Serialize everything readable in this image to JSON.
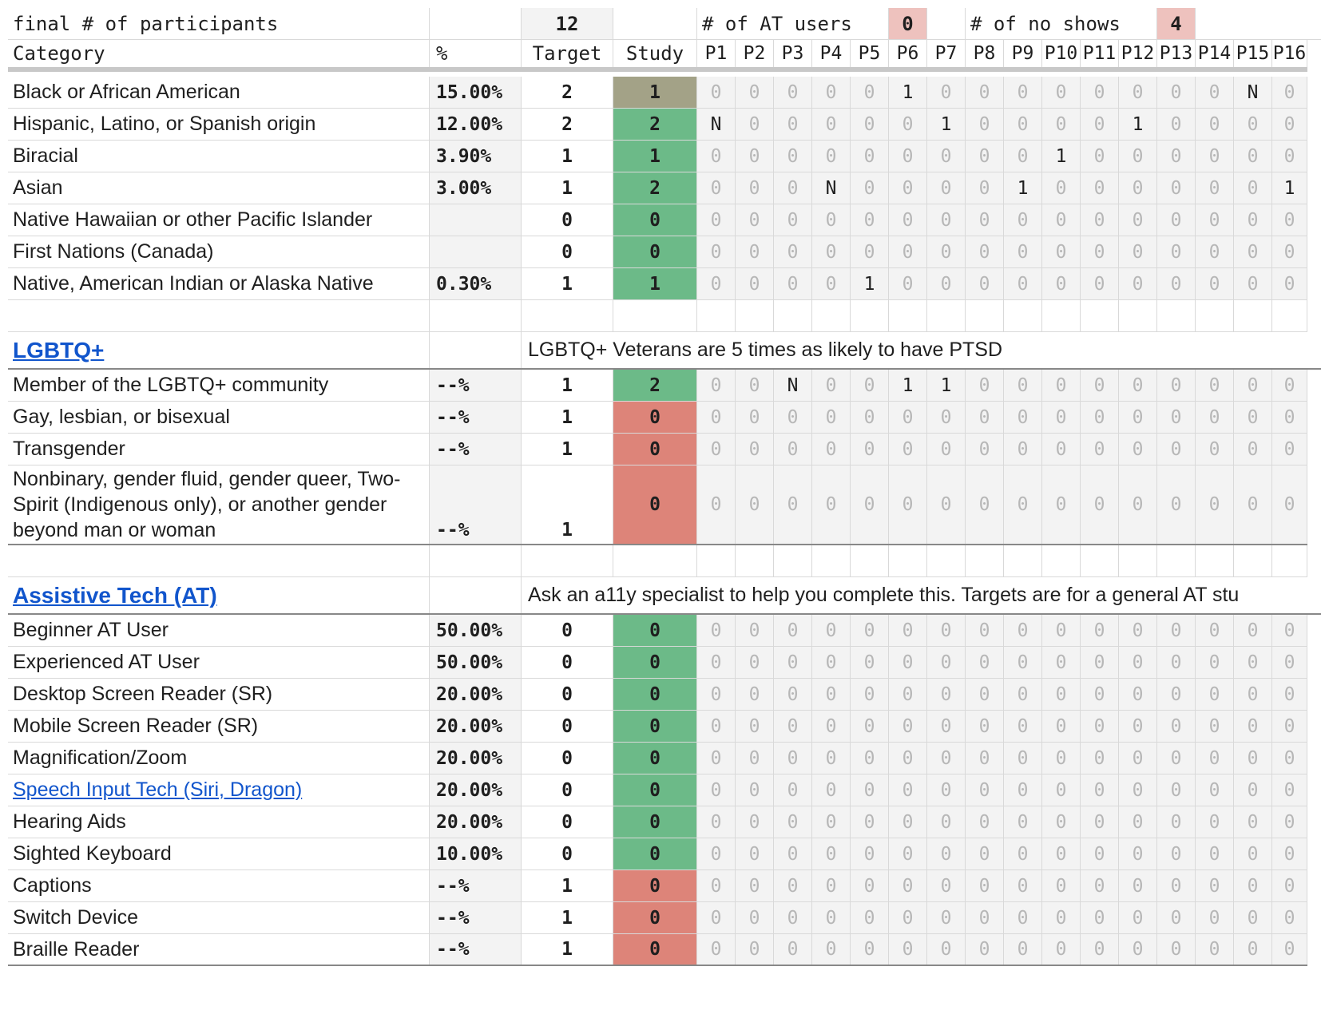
{
  "summary": {
    "final_label": "final # of participants",
    "final_value": "12",
    "at_users_label": "# of AT users",
    "at_users_value": "0",
    "no_shows_label": "# of no shows",
    "no_shows_value": "4"
  },
  "columns": {
    "category": "Category",
    "pct": "%",
    "target": "Target",
    "study": "Study",
    "participants": [
      "P1",
      "P2",
      "P3",
      "P4",
      "P5",
      "P6",
      "P7",
      "P8",
      "P9",
      "P10",
      "P11",
      "P12",
      "P13",
      "P14",
      "P15",
      "P16"
    ]
  },
  "colors": {
    "green": "#6cba88",
    "red": "#dd8479",
    "olive": "#a3a287",
    "pink": "#eec2be",
    "link": "#1155cc"
  },
  "race_rows": [
    {
      "category": "Black or African American",
      "pct": "15.00%",
      "target": "2",
      "study": "1",
      "study_color": "olive",
      "p": [
        "0",
        "0",
        "0",
        "0",
        "0",
        "1",
        "0",
        "0",
        "0",
        "0",
        "0",
        "0",
        "0",
        "0",
        "N",
        "0"
      ]
    },
    {
      "category": "Hispanic, Latino, or Spanish origin",
      "pct": "12.00%",
      "target": "2",
      "study": "2",
      "study_color": "green",
      "p": [
        "N",
        "0",
        "0",
        "0",
        "0",
        "0",
        "1",
        "0",
        "0",
        "0",
        "0",
        "1",
        "0",
        "0",
        "0",
        "0"
      ]
    },
    {
      "category": "Biracial",
      "pct": "3.90%",
      "target": "1",
      "study": "1",
      "study_color": "green",
      "p": [
        "0",
        "0",
        "0",
        "0",
        "0",
        "0",
        "0",
        "0",
        "0",
        "1",
        "0",
        "0",
        "0",
        "0",
        "0",
        "0"
      ]
    },
    {
      "category": "Asian",
      "pct": "3.00%",
      "target": "1",
      "study": "2",
      "study_color": "green",
      "p": [
        "0",
        "0",
        "0",
        "N",
        "0",
        "0",
        "0",
        "0",
        "1",
        "0",
        "0",
        "0",
        "0",
        "0",
        "0",
        "1"
      ]
    },
    {
      "category": "Native Hawaiian or other Pacific Islander",
      "pct": "",
      "target": "0",
      "study": "0",
      "study_color": "green",
      "p": [
        "0",
        "0",
        "0",
        "0",
        "0",
        "0",
        "0",
        "0",
        "0",
        "0",
        "0",
        "0",
        "0",
        "0",
        "0",
        "0"
      ]
    },
    {
      "category": "First Nations (Canada)",
      "pct": "",
      "target": "0",
      "study": "0",
      "study_color": "green",
      "p": [
        "0",
        "0",
        "0",
        "0",
        "0",
        "0",
        "0",
        "0",
        "0",
        "0",
        "0",
        "0",
        "0",
        "0",
        "0",
        "0"
      ]
    },
    {
      "category": "Native, American Indian or Alaska Native",
      "pct": "0.30%",
      "target": "1",
      "study": "1",
      "study_color": "green",
      "p": [
        "0",
        "0",
        "0",
        "0",
        "1",
        "0",
        "0",
        "0",
        "0",
        "0",
        "0",
        "0",
        "0",
        "0",
        "0",
        "0"
      ]
    }
  ],
  "lgbtq": {
    "title": "LGBTQ+",
    "note": "LGBTQ+ Veterans are 5 times as likely to have PTSD",
    "rows": [
      {
        "category": "Member of the LGBTQ+ community",
        "pct": "--%",
        "target": "1",
        "study": "2",
        "study_color": "green",
        "p": [
          "0",
          "0",
          "N",
          "0",
          "0",
          "1",
          "1",
          "0",
          "0",
          "0",
          "0",
          "0",
          "0",
          "0",
          "0",
          "0"
        ]
      },
      {
        "category": "Gay, lesbian, or bisexual",
        "pct": "--%",
        "target": "1",
        "study": "0",
        "study_color": "red",
        "p": [
          "0",
          "0",
          "0",
          "0",
          "0",
          "0",
          "0",
          "0",
          "0",
          "0",
          "0",
          "0",
          "0",
          "0",
          "0",
          "0"
        ]
      },
      {
        "category": "Transgender",
        "pct": "--%",
        "target": "1",
        "study": "0",
        "study_color": "red",
        "p": [
          "0",
          "0",
          "0",
          "0",
          "0",
          "0",
          "0",
          "0",
          "0",
          "0",
          "0",
          "0",
          "0",
          "0",
          "0",
          "0"
        ]
      },
      {
        "category": "Nonbinary, gender fluid, gender queer, Two-Spirit (Indigenous only), or another gender beyond man or woman",
        "pct": "--%",
        "target": "1",
        "study": "0",
        "study_color": "red",
        "p": [
          "0",
          "0",
          "0",
          "0",
          "0",
          "0",
          "0",
          "0",
          "0",
          "0",
          "0",
          "0",
          "0",
          "0",
          "0",
          "0"
        ]
      }
    ]
  },
  "at": {
    "title": "Assistive Tech (AT)",
    "note": "Ask an a11y specialist to help you complete this. Targets are for a general AT stu",
    "rows": [
      {
        "category": "Beginner AT User",
        "pct": "50.00%",
        "target": "0",
        "study": "0",
        "study_color": "green"
      },
      {
        "category": "Experienced AT User",
        "pct": "50.00%",
        "target": "0",
        "study": "0",
        "study_color": "green"
      },
      {
        "category": "Desktop Screen Reader (SR)",
        "pct": "20.00%",
        "target": "0",
        "study": "0",
        "study_color": "green"
      },
      {
        "category": "Mobile Screen Reader (SR)",
        "pct": "20.00%",
        "target": "0",
        "study": "0",
        "study_color": "green"
      },
      {
        "category": "Magnification/Zoom",
        "pct": "20.00%",
        "target": "0",
        "study": "0",
        "study_color": "green"
      },
      {
        "category": "Speech Input Tech (Siri, Dragon)",
        "pct": "20.00%",
        "target": "0",
        "study": "0",
        "study_color": "green",
        "link": true
      },
      {
        "category": "Hearing Aids",
        "pct": "20.00%",
        "target": "0",
        "study": "0",
        "study_color": "green"
      },
      {
        "category": "Sighted Keyboard",
        "pct": "10.00%",
        "target": "0",
        "study": "0",
        "study_color": "green"
      },
      {
        "category": "Captions",
        "pct": "--%",
        "target": "1",
        "study": "0",
        "study_color": "red"
      },
      {
        "category": "Switch Device",
        "pct": "--%",
        "target": "1",
        "study": "0",
        "study_color": "red"
      },
      {
        "category": "Braille Reader",
        "pct": "--%",
        "target": "1",
        "study": "0",
        "study_color": "red"
      }
    ],
    "p_default": [
      "0",
      "0",
      "0",
      "0",
      "0",
      "0",
      "0",
      "0",
      "0",
      "0",
      "0",
      "0",
      "0",
      "0",
      "0",
      "0"
    ]
  }
}
